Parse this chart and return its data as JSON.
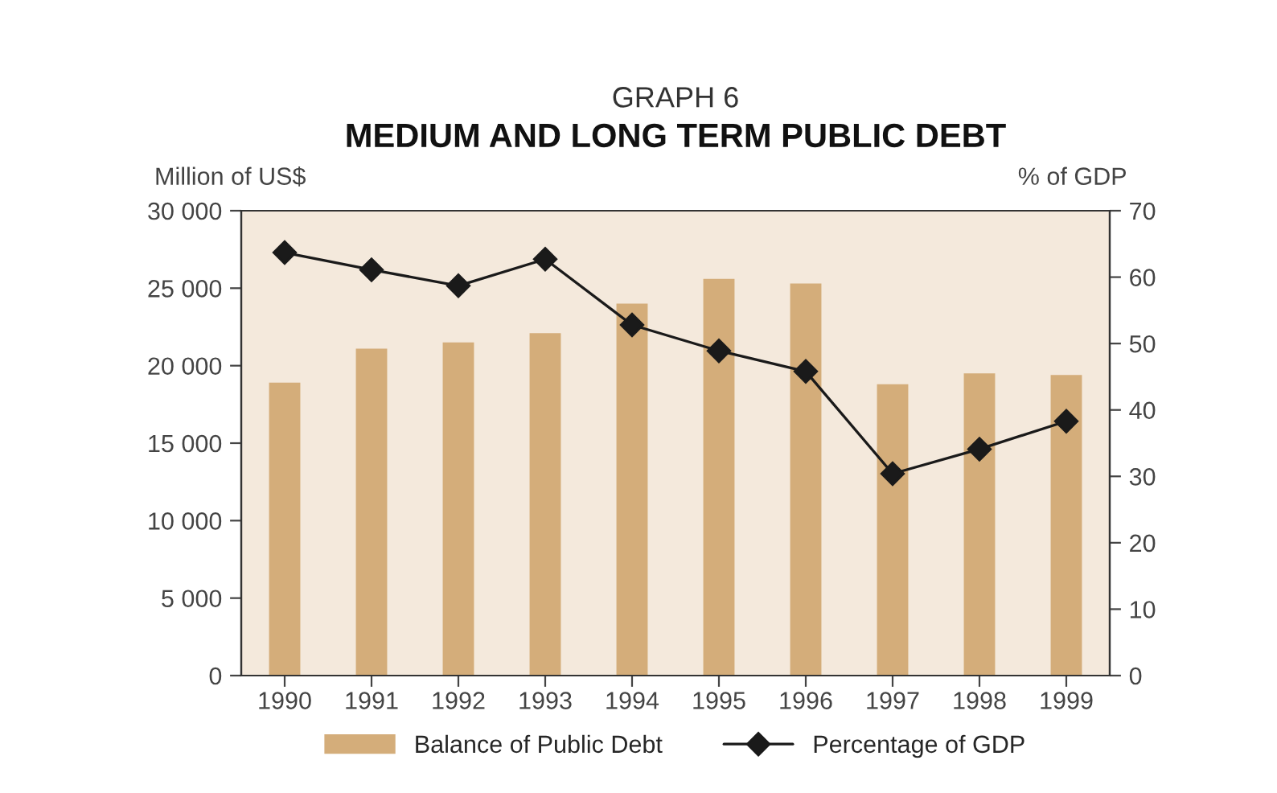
{
  "chart_data": {
    "type": "bar",
    "subtitle": "GRAPH 6",
    "title": "MEDIUM AND LONG TERM PUBLIC DEBT",
    "ylabel": "Million of US$",
    "y2label": "% of GDP",
    "categories": [
      "1990",
      "1991",
      "1992",
      "1993",
      "1994",
      "1995",
      "1996",
      "1997",
      "1998",
      "1999"
    ],
    "series": [
      {
        "name": "Balance of Public Debt",
        "color": "#d4ad7a",
        "values": [
          18900,
          21100,
          21500,
          22100,
          24000,
          25600,
          25300,
          18800,
          19500,
          19400
        ]
      },
      {
        "name": "Percentage of GDP",
        "color": "#1a1a1a",
        "type": "line",
        "axis": "y2",
        "marker": "diamond",
        "values": [
          63.7,
          61.1,
          58.7,
          62.7,
          52.8,
          48.9,
          45.8,
          30.4,
          34.1,
          38.3
        ]
      }
    ],
    "ylim": [
      0,
      30000
    ],
    "yticks": [
      {
        "value": 0,
        "label": "0"
      },
      {
        "value": 5000,
        "label": "5 000"
      },
      {
        "value": 10000,
        "label": "10 000"
      },
      {
        "value": 15000,
        "label": "15 000"
      },
      {
        "value": 20000,
        "label": "20 000"
      },
      {
        "value": 25000,
        "label": "25 000"
      },
      {
        "value": 30000,
        "label": "30 000"
      }
    ],
    "y2lim": [
      0,
      70
    ],
    "y2ticks": [
      0,
      10,
      20,
      30,
      40,
      50,
      60,
      70
    ],
    "grid": false,
    "legend": "bottom"
  }
}
